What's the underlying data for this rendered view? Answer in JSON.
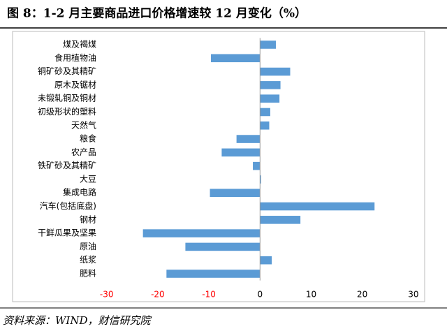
{
  "chart_data": {
    "type": "hbar",
    "title": "图 8：1-2 月主要商品进口价格增速较 12 月变化（%）",
    "source": "资料来源：WIND，财信研究院",
    "categories": [
      "煤及褐煤",
      "食用植物油",
      "铜矿砂及其精矿",
      "原木及锯材",
      "未锻轧铜及铜材",
      "初级形状的塑料",
      "天然气",
      "粮食",
      "农产品",
      "铁矿砂及其精矿",
      "大豆",
      "集成电路",
      "汽车(包括底盘)",
      "钢材",
      "干鲜瓜果及坚果",
      "原油",
      "纸浆",
      "肥料"
    ],
    "values": [
      3.1,
      -9.6,
      5.9,
      4.0,
      3.8,
      2.0,
      1.8,
      -4.6,
      -7.5,
      -1.4,
      0.2,
      -9.8,
      22.4,
      7.9,
      -22.9,
      -14.6,
      2.3,
      -18.3
    ],
    "color": "#5b9bd5",
    "xlim": [
      -48.4,
      32.2
    ],
    "xticks": [
      -30,
      -20,
      -10,
      0,
      10,
      20,
      30
    ],
    "negative_tick_color": "#ff0000"
  }
}
